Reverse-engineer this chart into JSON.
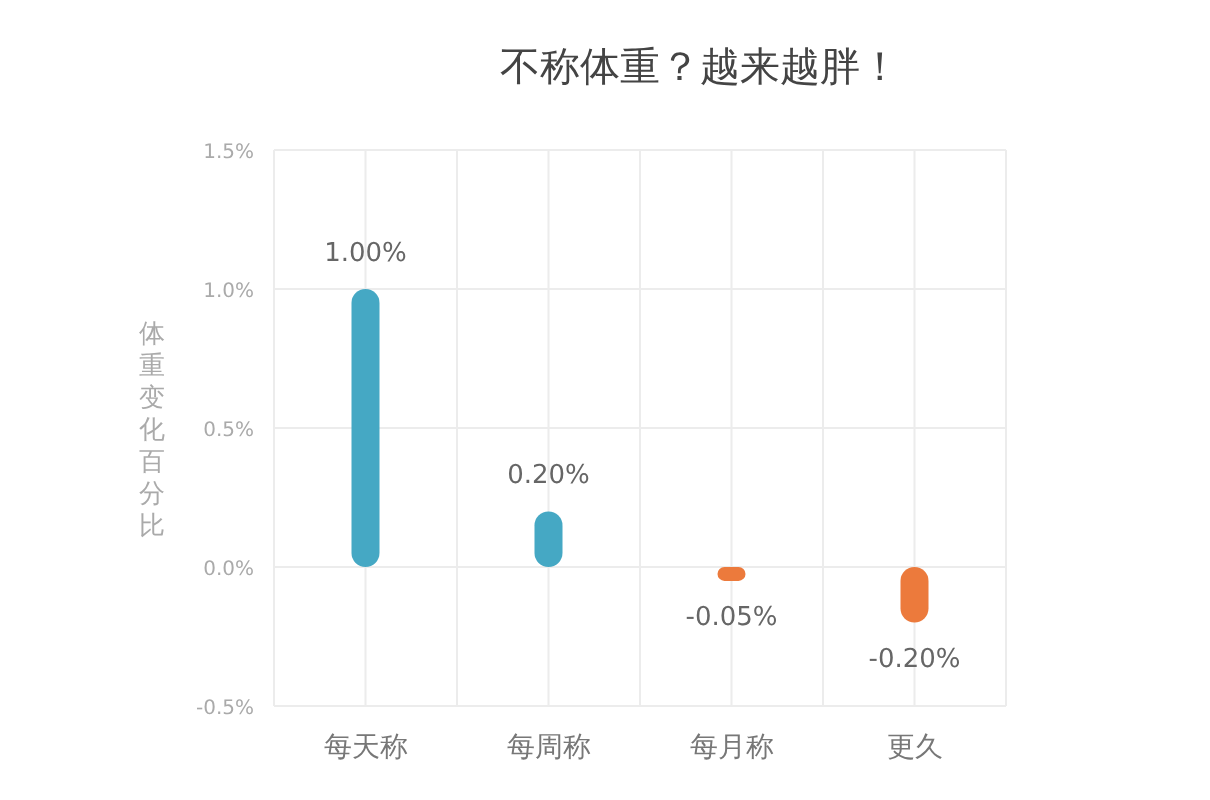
{
  "chart_data": {
    "type": "bar",
    "title": "不称体重？越来越胖！",
    "ylabel": "体重变化百分比",
    "categories": [
      "每天称",
      "每周称",
      "每月称",
      "更久"
    ],
    "values": [
      1.0,
      0.2,
      -0.05,
      -0.2
    ],
    "colors": [
      "#45a8c4",
      "#45a8c4",
      "#ec7a3c",
      "#ec7a3c"
    ],
    "value_labels": [
      "1.00%",
      "0.20%",
      "-0.05%",
      "-0.20%"
    ],
    "ylim": [
      -0.5,
      1.5
    ],
    "yticks": [
      {
        "value": -0.5,
        "label": "-0.5%"
      },
      {
        "value": 0,
        "label": "0.0%"
      },
      {
        "value": 0.5,
        "label": "0.5%"
      },
      {
        "value": 1.0,
        "label": "1.0%"
      },
      {
        "value": 1.5,
        "label": "1.5%"
      }
    ],
    "grid": true
  }
}
